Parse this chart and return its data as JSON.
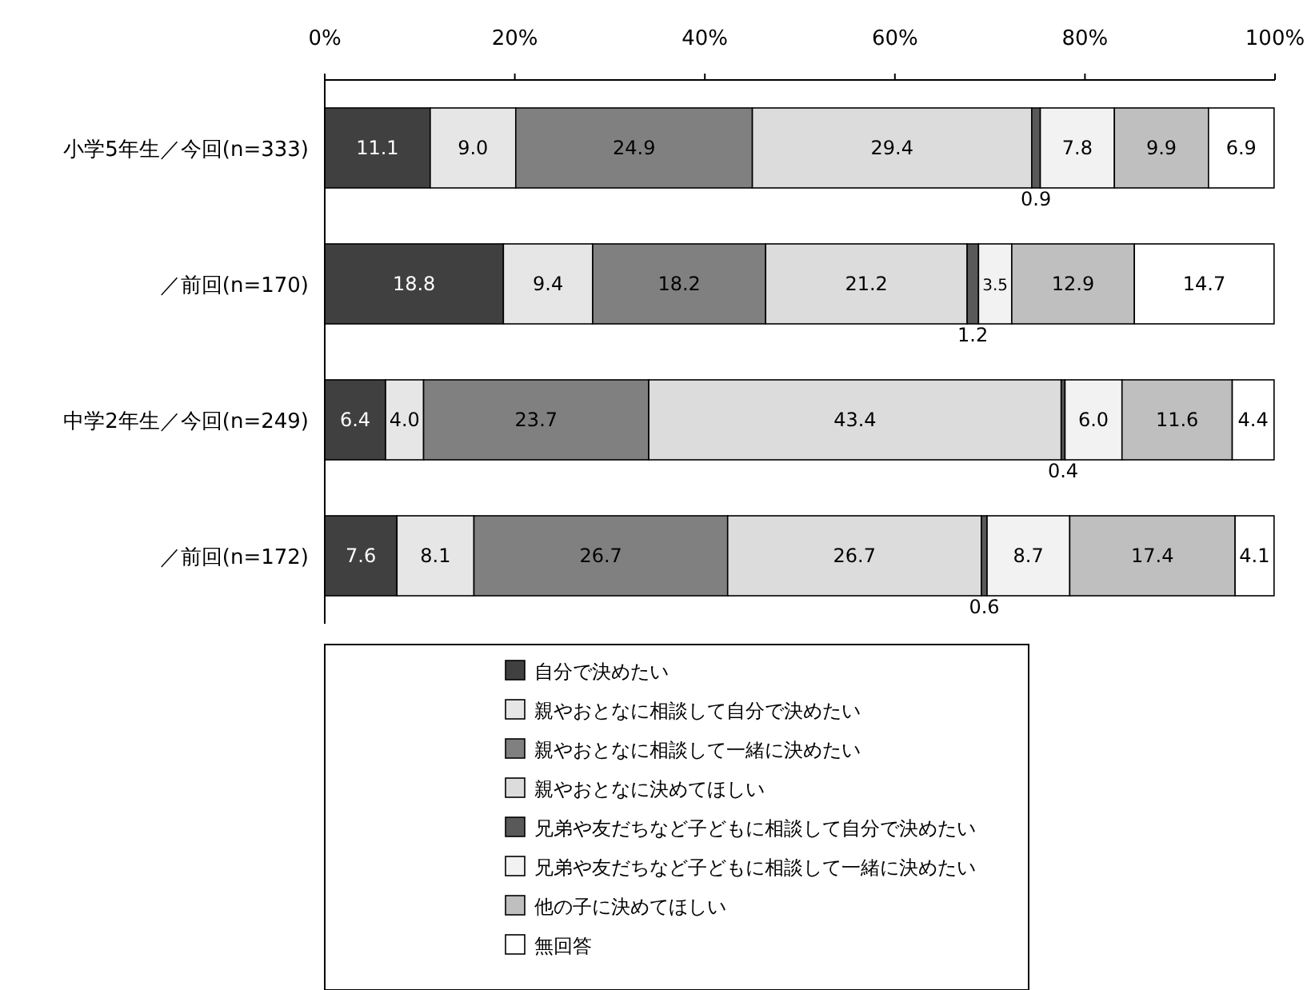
{
  "chart_data": {
    "type": "bar",
    "orientation": "horizontal",
    "stacked": true,
    "legend": "bottom",
    "grid": false,
    "categories": [
      "小学5年生／今回(n=333)",
      "／前回(n=170)",
      "中学2年生／今回(n=249)",
      "／前回(n=172)"
    ],
    "xlim": [
      0,
      100
    ],
    "xticks": [
      {
        "value": 0,
        "label": "0%"
      },
      {
        "value": 20,
        "label": "20%"
      },
      {
        "value": 40,
        "label": "40%"
      },
      {
        "value": 60,
        "label": "60%"
      },
      {
        "value": 80,
        "label": "80%"
      },
      {
        "value": 100,
        "label": "100%"
      }
    ],
    "series": [
      {
        "name": "自分で決めたい",
        "color": "#404040",
        "values": [
          11.1,
          18.8,
          6.4,
          7.6
        ],
        "value_labels": [
          "11.1",
          "18.8",
          "6.4",
          "7.6"
        ]
      },
      {
        "name": "親やおとなに相談して自分で決めたい",
        "color": "#e6e6e6",
        "values": [
          9.0,
          9.4,
          4.0,
          8.1
        ],
        "value_labels": [
          "9.0",
          "9.4",
          "4.0",
          "8.1"
        ]
      },
      {
        "name": "親やおとなに相談して一緒に決めたい",
        "color": "#808080",
        "values": [
          24.9,
          18.2,
          23.7,
          26.7
        ],
        "value_labels": [
          "24.9",
          "18.2",
          "23.7",
          "26.7"
        ]
      },
      {
        "name": "親やおとなに決めてほしい",
        "color": "#dcdcdc",
        "values": [
          29.4,
          21.2,
          43.4,
          26.7
        ],
        "value_labels": [
          "29.4",
          "21.2",
          "43.4",
          "26.7"
        ]
      },
      {
        "name": "兄弟や友だちなど子どもに相談して自分で決めたい",
        "color": "#595959",
        "values": [
          0.9,
          1.2,
          0.4,
          0.6
        ],
        "value_labels": [
          "0.9",
          "1.2",
          "0.4",
          "0.6"
        ]
      },
      {
        "name": "兄弟や友だちなど子どもに相談して一緒に決めたい",
        "color": "#f2f2f2",
        "values": [
          7.8,
          3.5,
          6.0,
          8.7
        ],
        "value_labels": [
          "7.8",
          "3.5",
          "6.0",
          "8.7"
        ]
      },
      {
        "name": "他の子に決めてほしい",
        "color": "#bfbfbf",
        "values": [
          9.9,
          12.9,
          11.6,
          17.4
        ],
        "value_labels": [
          "9.9",
          "12.9",
          "11.6",
          "17.4"
        ]
      },
      {
        "name": "無回答",
        "color": "#ffffff",
        "values": [
          6.9,
          14.7,
          4.4,
          4.1
        ],
        "value_labels": [
          "6.9",
          "14.7",
          "4.4",
          "4.1"
        ]
      }
    ]
  }
}
